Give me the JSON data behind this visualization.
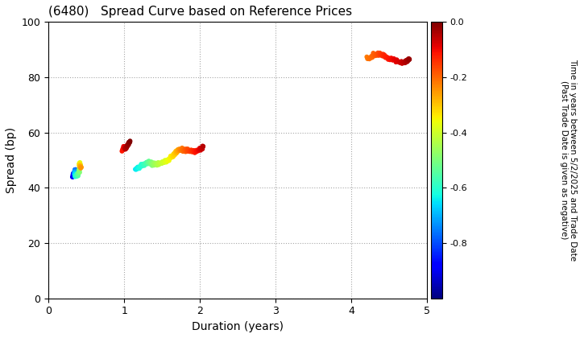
{
  "title": "(6480)   Spread Curve based on Reference Prices",
  "xlabel": "Duration (years)",
  "ylabel": "Spread (bp)",
  "colorbar_label_line1": "Time in years between 5/2/2025 and Trade Date",
  "colorbar_label_line2": "(Past Trade Date is given as negative)",
  "xlim": [
    0,
    5
  ],
  "ylim": [
    0,
    100
  ],
  "xticks": [
    0,
    1,
    2,
    3,
    4,
    5
  ],
  "yticks": [
    0,
    20,
    40,
    60,
    80,
    100
  ],
  "cmap": "jet",
  "vmin": -1.0,
  "vmax": 0.0,
  "colorbar_ticks": [
    0.0,
    -0.2,
    -0.4,
    -0.6,
    -0.8
  ],
  "point_size": 18,
  "figsize": [
    7.2,
    4.2
  ],
  "dpi": 100
}
